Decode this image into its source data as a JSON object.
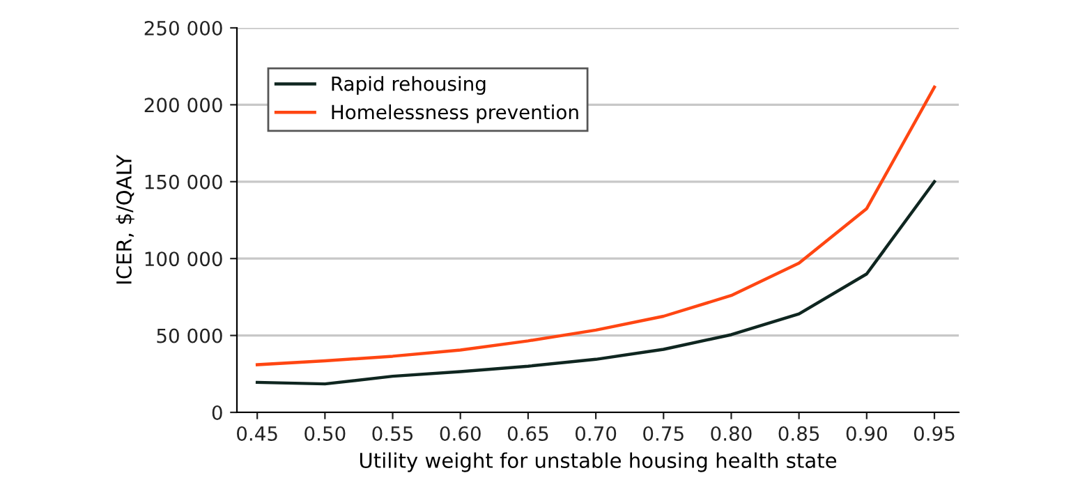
{
  "chart_data": {
    "type": "line",
    "xlabel": "Utility weight for unstable housing health state",
    "ylabel": "ICER, $/QALY",
    "x": [
      0.45,
      0.5,
      0.55,
      0.6,
      0.65,
      0.7,
      0.75,
      0.8,
      0.85,
      0.9,
      0.95
    ],
    "series": [
      {
        "name": "Rapid rehousing",
        "color": "#0f2620",
        "values": [
          19500,
          18500,
          23500,
          26500,
          30000,
          34500,
          41000,
          50500,
          64000,
          90000,
          150000
        ]
      },
      {
        "name": "Homelessness prevention",
        "color": "#ff4612",
        "values": [
          31000,
          33500,
          36500,
          40500,
          46500,
          53500,
          62500,
          76000,
          97000,
          132500,
          211500
        ]
      }
    ],
    "xlim": [
      0.435,
      0.968
    ],
    "xticks": [
      {
        "value": 0.45,
        "label": "0.45"
      },
      {
        "value": 0.5,
        "label": "0.50"
      },
      {
        "value": 0.55,
        "label": "0.55"
      },
      {
        "value": 0.6,
        "label": "0.60"
      },
      {
        "value": 0.65,
        "label": "0.65"
      },
      {
        "value": 0.7,
        "label": "0.70"
      },
      {
        "value": 0.75,
        "label": "0.75"
      },
      {
        "value": 0.8,
        "label": "0.80"
      },
      {
        "value": 0.85,
        "label": "0.85"
      },
      {
        "value": 0.9,
        "label": "0.90"
      },
      {
        "value": 0.95,
        "label": "0.95"
      }
    ],
    "ylim": [
      0,
      250000
    ],
    "yticks": [
      0,
      {
        "value": 50000,
        "label": "50 000"
      },
      {
        "value": 100000,
        "label": "100 000"
      },
      {
        "value": 150000,
        "label": "150 000"
      },
      {
        "value": 200000,
        "label": "200 000"
      },
      {
        "value": 250000,
        "label": "250 000"
      }
    ],
    "grid": "y",
    "legend": "top left",
    "marker": "none",
    "line_style": "solid"
  }
}
